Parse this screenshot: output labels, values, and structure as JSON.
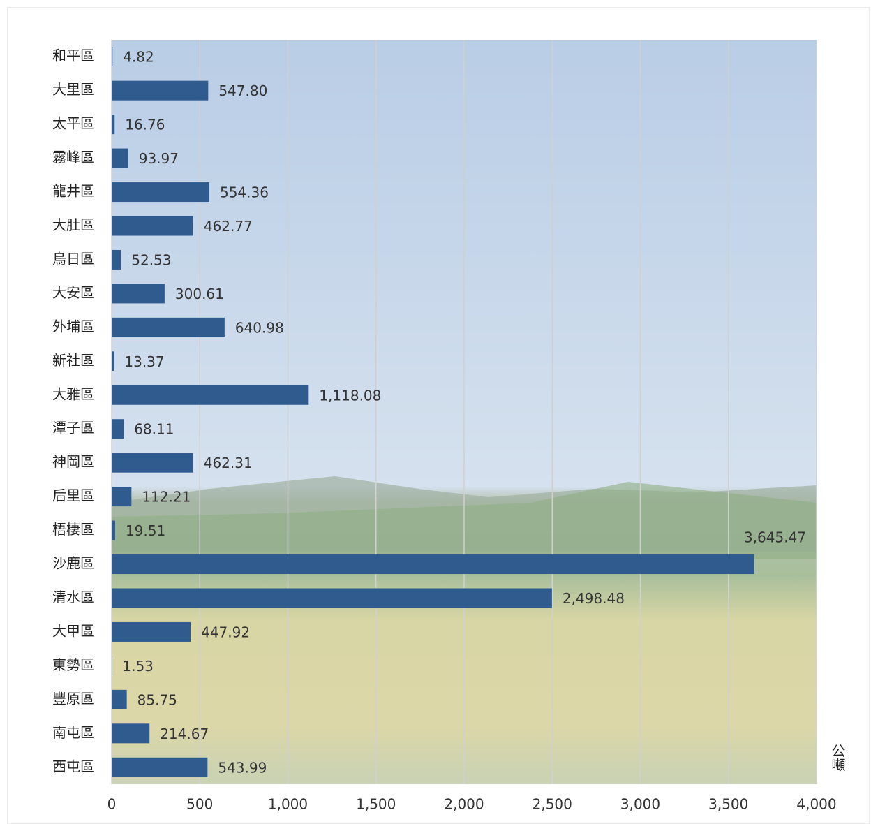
{
  "chart_data": {
    "type": "bar",
    "orientation": "horizontal",
    "categories": [
      "和平區",
      "大里區",
      "太平區",
      "霧峰區",
      "龍井區",
      "大肚區",
      "烏日區",
      "大安區",
      "外埔區",
      "新社區",
      "大雅區",
      "潭子區",
      "神岡區",
      "后里區",
      "梧棲區",
      "沙鹿區",
      "清水區",
      "大甲區",
      "東勢區",
      "豐原區",
      "南屯區",
      "西屯區"
    ],
    "values": [
      4.82,
      547.8,
      16.76,
      93.97,
      554.36,
      462.77,
      52.53,
      300.61,
      640.98,
      13.37,
      1118.08,
      68.11,
      462.31,
      112.21,
      19.51,
      3645.47,
      2498.48,
      447.92,
      1.53,
      85.75,
      214.67,
      543.99
    ],
    "value_labels": [
      "4.82",
      "547.80",
      "16.76",
      "93.97",
      "554.36",
      "462.77",
      "52.53",
      "300.61",
      "640.98",
      "13.37",
      "1,118.08",
      "68.11",
      "462.31",
      "112.21",
      "19.51",
      "3,645.47",
      "2,498.48",
      "447.92",
      "1.53",
      "85.75",
      "214.67",
      "543.99"
    ],
    "color": "#2f5b8f",
    "x_label": "公噸",
    "xlim": [
      0,
      4000
    ],
    "xticks": [
      0,
      500,
      {
        "value": 1000,
        "label": "1,000"
      },
      {
        "value": 1500,
        "label": "1,500"
      },
      {
        "value": 2000,
        "label": "2,000"
      },
      {
        "value": 2500,
        "label": "2,500"
      },
      {
        "value": 3000,
        "label": "3,000"
      },
      {
        "value": 3500,
        "label": "3,500"
      },
      {
        "value": 4000,
        "label": "4,000"
      }
    ],
    "grid": true
  }
}
